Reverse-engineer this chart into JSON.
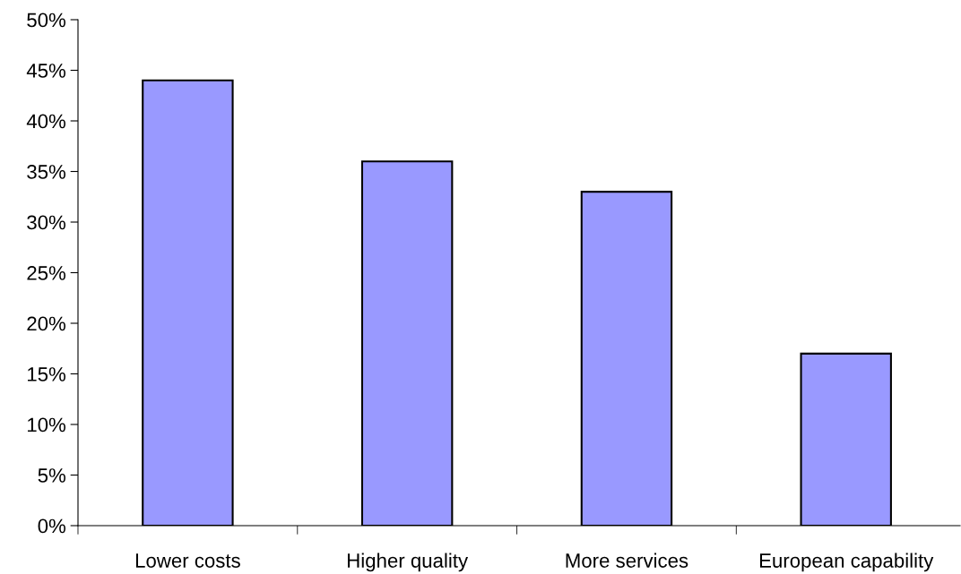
{
  "chart_data": {
    "type": "bar",
    "categories": [
      "Lower costs",
      "Higher quality",
      "More services",
      "European capability"
    ],
    "values": [
      44,
      36,
      33,
      17
    ],
    "color": "#9999ff",
    "ylim": [
      0,
      50
    ],
    "yticks": [
      {
        "value": 0,
        "label": "0%"
      },
      {
        "value": 5,
        "label": "5%"
      },
      {
        "value": 10,
        "label": "10%"
      },
      {
        "value": 15,
        "label": "15%"
      },
      {
        "value": 20,
        "label": "20%"
      },
      {
        "value": 25,
        "label": "25%"
      },
      {
        "value": 30,
        "label": "30%"
      },
      {
        "value": 35,
        "label": "35%"
      },
      {
        "value": 40,
        "label": "40%"
      },
      {
        "value": 45,
        "label": "45%"
      },
      {
        "value": 50,
        "label": "50%"
      }
    ],
    "grid": false,
    "legend": false
  }
}
